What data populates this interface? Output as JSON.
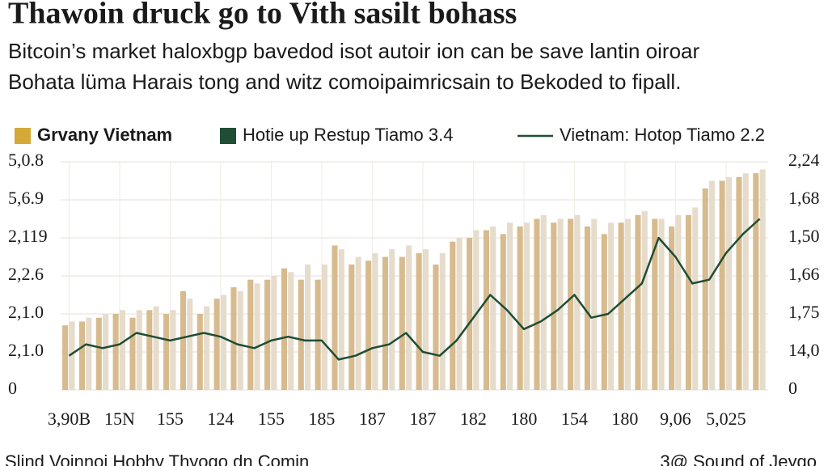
{
  "chart_data": {
    "type": "bar",
    "title": "Thawoin druck go to Vith sasilt bohass",
    "subtitle": [
      "Bitcoin’s market haloxbgp bavedod isot autoir ion can be save lantin oiroar",
      "Bohata lüma Harais tong and witz comoipaimricsain to Bekoded to fipall."
    ],
    "footer_left": "Slind Voinnoi Hobhy Thyogo dn Comin",
    "footer_right": "3@ Sound of Jeygo",
    "legend": "top-left",
    "grid": true,
    "categories": [
      "3,90B",
      null,
      null,
      "15N",
      null,
      null,
      "155",
      null,
      null,
      "124",
      null,
      null,
      "155",
      null,
      null,
      "185",
      null,
      null,
      "187",
      null,
      null,
      "187",
      null,
      null,
      "182",
      null,
      null,
      "180",
      null,
      null,
      "154",
      null,
      null,
      "180",
      null,
      null,
      "9,06",
      null,
      null,
      "5,025",
      null,
      null
    ],
    "series": [
      {
        "name": "Grvany Vietnam",
        "color": "#d7bb8e",
        "values": [
          1.7,
          1.8,
          1.9,
          2.0,
          1.9,
          2.1,
          2.0,
          2.6,
          2.0,
          2.4,
          2.7,
          2.9,
          2.9,
          3.2,
          2.9,
          2.9,
          3.8,
          3.3,
          3.4,
          3.5,
          3.5,
          3.6,
          3.3,
          3.9,
          4.0,
          4.2,
          4.1,
          4.3,
          4.5,
          4.4,
          4.5,
          4.3,
          4.1,
          4.4,
          4.6,
          4.5,
          4.3,
          4.6,
          5.3,
          5.5,
          5.6,
          5.7
        ]
      },
      {
        "name": "Hotie up Restup Tiamo 3.4",
        "color": "#e6dccc",
        "values": [
          1.8,
          1.9,
          2.0,
          2.1,
          2.1,
          2.2,
          2.1,
          2.4,
          2.2,
          2.5,
          2.6,
          2.8,
          3.0,
          3.1,
          3.3,
          3.3,
          3.7,
          3.5,
          3.6,
          3.7,
          3.8,
          3.7,
          3.6,
          4.0,
          4.2,
          4.3,
          4.4,
          4.4,
          4.6,
          4.5,
          4.6,
          4.5,
          4.4,
          4.5,
          4.7,
          4.5,
          4.6,
          4.8,
          5.5,
          5.6,
          5.7,
          5.8
        ]
      },
      {
        "name": "Vietnam: Hotop Tiamo 2.2",
        "color": "#1f4d36",
        "type": "line",
        "axis": "y2",
        "values": [
          0.9,
          1.2,
          1.1,
          1.2,
          1.5,
          1.4,
          1.3,
          1.4,
          1.5,
          1.4,
          1.2,
          1.1,
          1.3,
          1.4,
          1.3,
          1.3,
          0.8,
          0.9,
          1.1,
          1.2,
          1.5,
          1.0,
          0.9,
          1.3,
          1.9,
          2.5,
          2.1,
          1.6,
          1.8,
          2.1,
          2.5,
          1.9,
          2.0,
          2.4,
          2.8,
          4.0,
          3.5,
          2.8,
          2.9,
          3.6,
          4.1,
          4.5
        ]
      }
    ],
    "ylim": [
      0,
      6
    ],
    "yticks": [
      0,
      {
        "value": 1,
        "label": "2,1.0"
      },
      {
        "value": 2,
        "label": "2,1.0"
      },
      {
        "value": 3,
        "label": "2,2.6"
      },
      {
        "value": 4,
        "label": "2,119"
      },
      {
        "value": 5,
        "label": "5,6.9"
      },
      {
        "value": 6,
        "label": "5,0.8"
      }
    ],
    "y2lim": [
      0,
      6
    ],
    "y2ticks": [
      0,
      {
        "value": 1,
        "label": "14,0"
      },
      {
        "value": 2,
        "label": "1,75"
      },
      {
        "value": 3,
        "label": "1,66"
      },
      {
        "value": 4,
        "label": "1,50"
      },
      {
        "value": 5,
        "label": "1,68"
      },
      {
        "value": 6,
        "label": "2,24"
      }
    ]
  }
}
